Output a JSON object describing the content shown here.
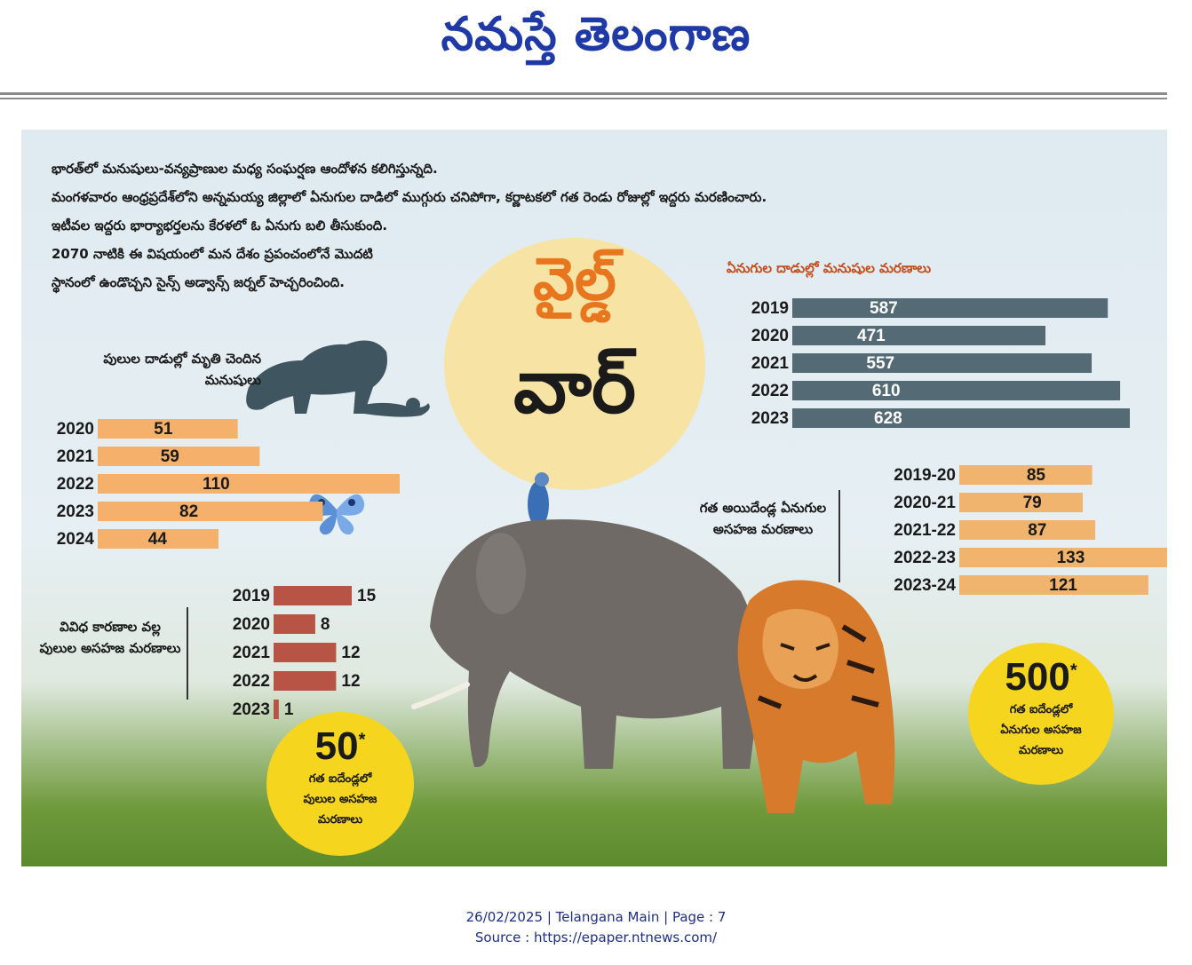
{
  "masthead": {
    "title": "నమస్తే తెలంగాణ"
  },
  "intro": {
    "lines": [
      "భారత్‌లో మనుషులు-వన్యప్రాణుల మధ్య సంఘర్షణ ఆందోళన కలిగిస్తున్నది.",
      "మంగళవారం ఆంధ్రప్రదేశ్‌లోని అన్నమయ్య జిల్లాలో ఏనుగుల దాడిలో ముగ్గురు చనిపోగా, కర్ణాటకలో గత రెండు రోజుల్లో ఇద్దరు మరణించారు.",
      "ఇటీవల ఇద్దరు భార్యాభర్తలను కేరళలో ఓ ఏనుగు బలి తీసుకుంది.",
      "2070 నాటికి ఈ విషయంలో మన దేశం ప్రపంచంలోనే మొదటి",
      "స్థానంలో ఉండొచ్చని సైన్స్ అడ్వాన్స్ జర్నల్ హెచ్చరించింది."
    ]
  },
  "headline": {
    "line1": "వైల్డ్",
    "line2": "వార్"
  },
  "chart_data": [
    {
      "type": "bar",
      "title": "ఏనుగుల దాడుల్లో మనుషుల మరణాలు",
      "categories": [
        "2019",
        "2020",
        "2021",
        "2022",
        "2023"
      ],
      "values": [
        587,
        471,
        557,
        610,
        628
      ],
      "color": "#546a74"
    },
    {
      "type": "bar",
      "title": "పులుల దాడుల్లో మృతి చెందిన మనుషులు",
      "categories": [
        "2020",
        "2021",
        "2022",
        "2023",
        "2024"
      ],
      "values": [
        51,
        59,
        110,
        82,
        44
      ],
      "color": "#f5b06b"
    },
    {
      "type": "bar",
      "title": "గత అయిదేండ్ల ఏనుగుల అసహజ మరణాలు",
      "categories": [
        "2019-20",
        "2020-21",
        "2021-22",
        "2022-23",
        "2023-24"
      ],
      "values": [
        85,
        79,
        87,
        133,
        121
      ],
      "color": "#f0b46e"
    },
    {
      "type": "bar",
      "title": "వివిధ కారణాల వల్ల పులుల అసహజ మరణాలు",
      "categories": [
        "2019",
        "2020",
        "2021",
        "2022",
        "2023"
      ],
      "values": [
        15,
        8,
        12,
        12,
        1
      ],
      "color": "#b85446"
    }
  ],
  "badges": {
    "tiger": {
      "number": "50",
      "star": "*",
      "lines": [
        "గత ఐదేండ్లలో",
        "పులుల అసహజ",
        "మరణాలు"
      ]
    },
    "elephant": {
      "number": "500",
      "star": "*",
      "lines": [
        "గత ఐదేండ్లలో",
        "ఏనుగుల అసహజ",
        "మరణాలు"
      ]
    }
  },
  "footer": {
    "date_line": "26/02/2025 | Telangana Main | Page : 7",
    "source_line": "Source : https://epaper.ntnews.com/"
  }
}
